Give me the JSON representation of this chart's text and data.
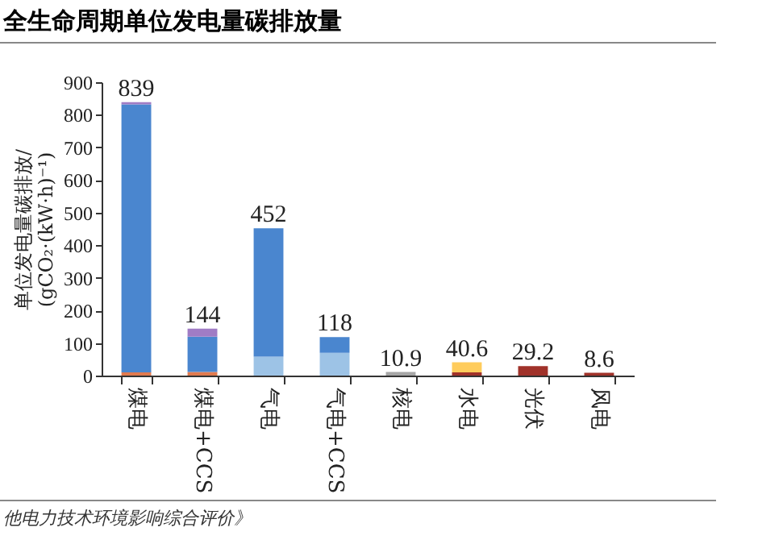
{
  "chart_data": {
    "type": "bar",
    "stacked": true,
    "title": "全生命周期单位发电量碳排放量",
    "ylabel": "单位发电量碳排放/\n(gCO₂·(kW·h)⁻¹)",
    "categories": [
      "煤电",
      "煤电+CCS",
      "气电",
      "气电+CCS",
      "核电",
      "水电",
      "光伏",
      "风电"
    ],
    "series": [
      {
        "color": "#a6a6a6",
        "values": [
          null,
          null,
          null,
          null,
          10.9,
          null,
          null,
          null
        ]
      },
      {
        "color": "#e07a4f",
        "values": [
          10,
          11,
          null,
          null,
          null,
          null,
          null,
          null
        ]
      },
      {
        "color": "#9dc3e6",
        "values": [
          null,
          null,
          58,
          70,
          null,
          null,
          null,
          null
        ]
      },
      {
        "color": "#4a86cf",
        "values": [
          822,
          108,
          394,
          48,
          null,
          null,
          null,
          null
        ]
      },
      {
        "color": "#a07cc5",
        "values": [
          7,
          25,
          null,
          null,
          null,
          null,
          null,
          null
        ]
      },
      {
        "color": "#a0322a",
        "values": [
          null,
          null,
          null,
          null,
          null,
          10,
          29.2,
          8.6
        ]
      },
      {
        "color": "#ffcc5c",
        "values": [
          null,
          null,
          null,
          null,
          null,
          30.6,
          null,
          null
        ]
      }
    ],
    "totals": [
      "839",
      "144",
      "452",
      "118",
      "10.9",
      "40.6",
      "29.2",
      "8.6"
    ],
    "ylim": [
      0,
      900
    ],
    "yticks": [
      0,
      100,
      200,
      300,
      400,
      500,
      600,
      700,
      800,
      900
    ],
    "grid": false,
    "legend": false,
    "annotations": [
      "他电力技术环境影响综合评价》"
    ]
  }
}
